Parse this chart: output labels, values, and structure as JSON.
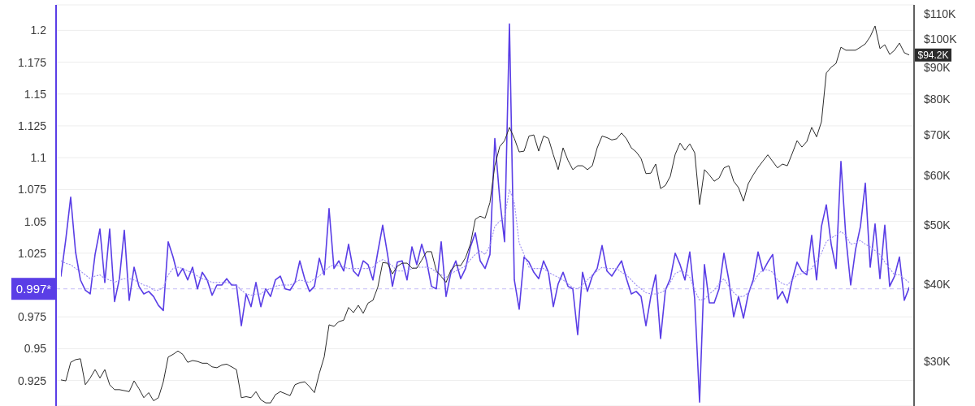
{
  "chart_data": {
    "type": "line",
    "line_style": "solid",
    "marker": "none",
    "grid": "y",
    "log": "y2",
    "categories": [
      null,
      null,
      null,
      null,
      null,
      null,
      null,
      null,
      null,
      null,
      null,
      null,
      null,
      null,
      null,
      null,
      null,
      null,
      null,
      null,
      null,
      null,
      null,
      null,
      null,
      null,
      null,
      null,
      null,
      null,
      null,
      null,
      null,
      null,
      null,
      null,
      null,
      null,
      null,
      null,
      null,
      null,
      null,
      null,
      null,
      null,
      null,
      null,
      null,
      null,
      null,
      null,
      null,
      null,
      null,
      null,
      null,
      null,
      null,
      null,
      null,
      null,
      null,
      null,
      null,
      null,
      null,
      null,
      null,
      null,
      null,
      null,
      null,
      null,
      null,
      null,
      null,
      null,
      null,
      null,
      null,
      null,
      null,
      null,
      null,
      null,
      null,
      null,
      null,
      null,
      null,
      null,
      null,
      null,
      null,
      null,
      null,
      null,
      null,
      null,
      null,
      null,
      null,
      null,
      null,
      null,
      null,
      null,
      null,
      null,
      null,
      null,
      null,
      null,
      null,
      null,
      null,
      null,
      null,
      null,
      null,
      null,
      null,
      null,
      null,
      null,
      null,
      null,
      null,
      null,
      null,
      null,
      null,
      null,
      null,
      null,
      null,
      null,
      null,
      null,
      null,
      null,
      null,
      null,
      null,
      null,
      null,
      null,
      null,
      null,
      null,
      null,
      null,
      null,
      null,
      null,
      null,
      null,
      null,
      null,
      null,
      null,
      null,
      null,
      null,
      null,
      null,
      null,
      null,
      null,
      null,
      null,
      null,
      null,
      null
    ],
    "series": [
      {
        "color": "#5a3ee6",
        "values": [
          1.007,
          1.036,
          1.069,
          1.026,
          1.004,
          0.996,
          0.993,
          1.024,
          1.044,
          1.002,
          1.044,
          0.987,
          1.005,
          1.043,
          0.988,
          1.014,
          0.999,
          0.993,
          0.995,
          0.991,
          0.984,
          0.98,
          1.034,
          1.022,
          1.007,
          1.013,
          1.004,
          1.014,
          0.997,
          1.01,
          1.004,
          0.992,
          1.0,
          1.0,
          1.005,
          1.0,
          1.0,
          0.968,
          0.993,
          0.983,
          1.002,
          0.983,
          0.997,
          0.991,
          1.004,
          1.007,
          0.997,
          0.996,
          1.002,
          1.019,
          1.005,
          0.995,
          0.999,
          1.021,
          1.008,
          1.06,
          1.013,
          1.019,
          1.011,
          1.032,
          1.011,
          1.007,
          1.019,
          1.016,
          1.004,
          1.026,
          1.047,
          1.024,
          0.999,
          1.018,
          1.019,
          1.004,
          1.03,
          1.016,
          1.032,
          1.019,
          0.999,
          0.997,
          1.034,
          0.991,
          1.01,
          1.019,
          1.005,
          1.013,
          1.03,
          1.041,
          1.019,
          1.013,
          1.024,
          1.115,
          1.068,
          1.034,
          1.205,
          1.004,
          0.981,
          1.022,
          1.018,
          1.01,
          1.005,
          1.019,
          1.01,
          0.983,
          1.001,
          1.01,
          0.999,
          0.997,
          0.961,
          1.01,
          0.995,
          1.007,
          1.013,
          1.031,
          1.011,
          1.007,
          1.013,
          1.019,
          1.005,
          0.993,
          0.995,
          0.991,
          0.968,
          0.991,
          1.008,
          0.958,
          0.996,
          1.005,
          1.025,
          1.016,
          1.004,
          1.026,
          0.989,
          0.908,
          1.016,
          0.986,
          0.986,
          0.997,
          1.025,
          1.004,
          0.975,
          0.991,
          0.974,
          0.993,
          1.004,
          1.026,
          1.011,
          1.018,
          1.024,
          0.989,
          0.995,
          0.986,
          1.004,
          1.018,
          1.011,
          1.008,
          1.039,
          1.004,
          1.046,
          1.063,
          1.032,
          1.013,
          1.097,
          1.038,
          1.0,
          1.028,
          1.046,
          1.08,
          1.014,
          1.048,
          1.005,
          1.047,
          0.999,
          1.007,
          1.022,
          0.988,
          0.998
        ]
      },
      {
        "color": "#9d8ff2",
        "line_style": "dotted",
        "values": [
          1.019,
          1.017,
          1.016,
          1.013,
          1.011,
          1.008,
          1.005,
          1.007,
          1.008,
          1.005,
          1.004,
          1.002,
          1.004,
          1.005,
          1.005,
          1.004,
          1.002,
          1.0,
          0.999,
          0.996,
          0.996,
          0.998,
          1.008,
          1.013,
          1.014,
          1.013,
          1.011,
          1.01,
          1.007,
          1.005,
          1.004,
          1.002,
          1.002,
          1.002,
          1.002,
          1.001,
          1.0,
          0.996,
          0.993,
          0.992,
          0.993,
          0.993,
          0.996,
          0.997,
          0.999,
          1.0,
          1.0,
          1.0,
          1.002,
          1.004,
          1.003,
          1.002,
          1.005,
          1.007,
          1.011,
          1.014,
          1.016,
          1.015,
          1.014,
          1.013,
          1.013,
          1.013,
          1.013,
          1.013,
          1.014,
          1.018,
          1.02,
          1.018,
          1.015,
          1.011,
          1.011,
          1.011,
          1.013,
          1.014,
          1.014,
          1.014,
          1.013,
          1.01,
          1.008,
          1.006,
          1.009,
          1.011,
          1.013,
          1.015,
          1.02,
          1.024,
          1.027,
          1.024,
          1.031,
          1.046,
          1.05,
          1.053,
          1.075,
          1.065,
          1.033,
          1.024,
          1.014,
          1.013,
          1.013,
          1.013,
          1.01,
          1.008,
          1.006,
          1.004,
          1.001,
          0.998,
          0.997,
          1.0,
          1.004,
          1.008,
          1.011,
          1.014,
          1.013,
          1.013,
          1.013,
          1.01,
          1.008,
          1.004,
          1.0,
          0.997,
          0.994,
          0.993,
          0.993,
          0.994,
          0.996,
          1.002,
          1.009,
          1.011,
          1.01,
          1.006,
          0.996,
          0.988,
          0.989,
          0.993,
          0.996,
          1.001,
          1.005,
          0.999,
          0.994,
          0.991,
          0.991,
          0.994,
          1.002,
          1.008,
          1.012,
          1.012,
          1.01,
          1.004,
          1.001,
          1.0,
          1.004,
          1.008,
          1.009,
          1.011,
          1.013,
          1.019,
          1.025,
          1.034,
          1.037,
          1.039,
          1.042,
          1.039,
          1.032,
          1.033,
          1.035,
          1.032,
          1.03,
          1.027,
          1.024,
          1.018,
          1.013,
          1.008,
          1.008,
          1.005,
          1.002
        ]
      },
      {
        "color": "#2b2b2b",
        "axis": "y2",
        "values": [
          28000,
          27900,
          29900,
          30200,
          30300,
          27500,
          28200,
          29100,
          28200,
          29100,
          27500,
          27000,
          27000,
          26900,
          26800,
          27900,
          27100,
          26200,
          26700,
          25900,
          26200,
          27800,
          30500,
          30800,
          31200,
          30800,
          29900,
          30100,
          30000,
          29800,
          29800,
          29400,
          29300,
          29600,
          29700,
          29400,
          29100,
          26200,
          26300,
          26200,
          26800,
          26000,
          25700,
          25700,
          26500,
          26800,
          26600,
          26400,
          27500,
          27700,
          27800,
          27300,
          26700,
          28700,
          30500,
          34400,
          34200,
          34800,
          35000,
          36700,
          36000,
          37000,
          35900,
          37300,
          37700,
          39600,
          43400,
          43300,
          41600,
          42800,
          43300,
          43300,
          42500,
          42500,
          43800,
          45200,
          45200,
          42100,
          41200,
          40300,
          42200,
          43000,
          42900,
          44200,
          46500,
          51000,
          51600,
          51200,
          54300,
          62300,
          66900,
          68400,
          71900,
          69000,
          65600,
          65800,
          69600,
          69900,
          65800,
          69600,
          69000,
          64900,
          61400,
          66600,
          63600,
          61400,
          62300,
          62300,
          61400,
          62300,
          66600,
          69600,
          69200,
          68600,
          68900,
          70400,
          68900,
          66600,
          65600,
          64000,
          60500,
          60600,
          62700,
          57200,
          57900,
          59900,
          65000,
          67800,
          66000,
          67600,
          65400,
          53900,
          61400,
          60200,
          58800,
          59500,
          61800,
          62300,
          58800,
          57400,
          54600,
          58300,
          60200,
          61900,
          63400,
          64900,
          63300,
          61800,
          62700,
          62300,
          65200,
          68400,
          66800,
          68200,
          71900,
          69400,
          73400,
          88100,
          90000,
          91300,
          97000,
          95900,
          95900,
          95900,
          97000,
          98200,
          100900,
          105000,
          96500,
          97900,
          94400,
          95900,
          98500,
          95000,
          94200
        ],
        "value_labels": [
          null,
          null,
          null,
          null,
          null,
          null,
          null,
          null,
          null,
          null,
          null,
          null,
          null,
          null,
          null,
          null,
          null,
          null,
          null,
          null,
          null,
          null,
          null,
          null,
          null,
          null,
          null,
          null,
          null,
          null,
          null,
          null,
          null,
          null,
          null,
          null,
          null,
          null,
          null,
          null,
          null,
          null,
          null,
          null,
          null,
          null,
          null,
          null,
          null,
          null,
          null,
          null,
          null,
          null,
          null,
          null,
          null,
          null,
          null,
          null,
          null,
          null,
          null,
          null,
          null,
          null,
          null,
          null,
          null,
          null,
          null,
          null,
          null,
          null,
          null,
          null,
          null,
          null,
          null,
          null,
          null,
          null,
          null,
          null,
          null,
          null,
          null,
          null,
          null,
          null,
          null,
          null,
          null,
          null,
          null,
          null,
          null,
          null,
          null,
          null,
          null,
          null,
          null,
          null,
          null,
          null,
          null,
          null,
          null,
          null,
          null,
          null,
          null,
          null,
          null,
          null,
          null,
          null,
          null,
          null,
          null,
          null,
          null,
          null,
          null,
          null,
          null,
          null,
          null,
          null,
          null,
          null,
          null,
          null,
          null,
          null,
          null,
          null,
          null,
          null,
          null,
          null,
          null,
          null,
          null,
          null,
          null,
          null,
          null,
          null,
          null,
          null,
          null,
          null,
          null,
          null,
          null,
          null,
          null,
          null,
          null,
          null,
          null,
          null,
          null,
          null,
          null,
          null,
          null,
          null,
          null,
          null,
          null,
          null,
          "$94.2K"
        ]
      }
    ],
    "ylim": [
      0.905,
      1.22
    ],
    "yticks": [
      0.925,
      0.95,
      0.975,
      1.025,
      1.05,
      1.075,
      1.1,
      1.125,
      1.15,
      1.175,
      1.2
    ],
    "y2lim": [
      25400,
      113600
    ],
    "y2ticks": [
      {
        "value": 30000,
        "label": "$30K"
      },
      {
        "value": 40000,
        "label": "$40K"
      },
      {
        "value": 50000,
        "label": "$50K"
      },
      {
        "value": 60000,
        "label": "$60K"
      },
      {
        "value": 70000,
        "label": "$70K"
      },
      {
        "value": 80000,
        "label": "$80K"
      },
      {
        "value": 90000,
        "label": "$90K"
      },
      {
        "value": 100000,
        "label": "$100K"
      },
      {
        "value": 110000,
        "label": "$110K"
      }
    ],
    "ref_lines": [
      {
        "axis": "y",
        "value": 0.997,
        "label": "0.997*",
        "color": "#5a3ee6",
        "line_style": "dashed"
      }
    ]
  }
}
